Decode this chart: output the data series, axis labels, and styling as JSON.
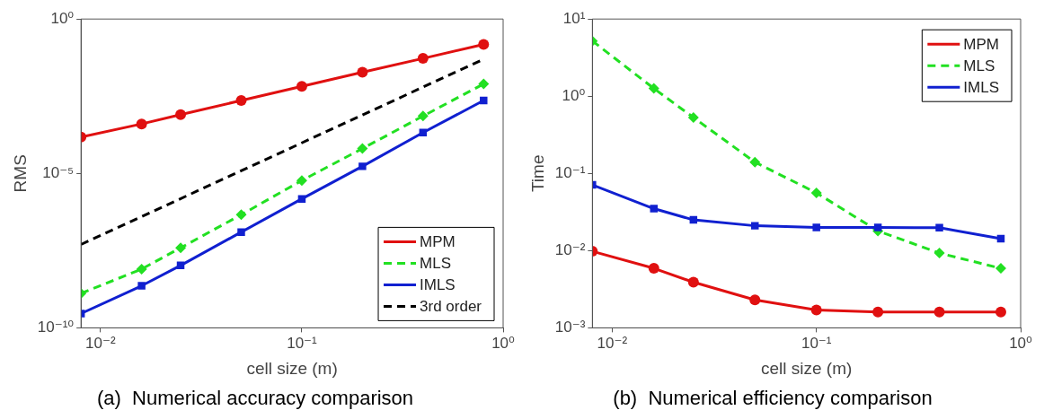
{
  "chart_data": [
    {
      "type": "line",
      "title": "(a)  Numerical accuracy comparison",
      "xlabel": "cell size (m)",
      "ylabel": "RMS",
      "log": "xy",
      "grid": false,
      "legend": "bottom right",
      "x": [
        0.008,
        0.016,
        0.025,
        0.05,
        0.1,
        0.2,
        0.4,
        0.8
      ],
      "xlim": [
        0.008,
        1
      ],
      "xticks": [
        {
          "value": 0.01,
          "label": "10⁻²"
        },
        {
          "value": 0.1,
          "label": "10⁻¹"
        },
        {
          "value": 1,
          "label": "10⁰"
        }
      ],
      "ylim": [
        1e-10,
        1
      ],
      "yticks": [
        {
          "value": 1e-10,
          "label": "10⁻¹⁰"
        },
        {
          "value": 1e-05,
          "label": "10⁻⁵"
        },
        {
          "value": 1,
          "label": "10⁰"
        }
      ],
      "series": [
        {
          "name": "MPM",
          "color": "#e01010",
          "marker": "circle",
          "line_style": "solid",
          "values": [
            0.00015,
            0.0004,
            0.0008,
            0.0023,
            0.0066,
            0.019,
            0.053,
            0.15
          ]
        },
        {
          "name": "MLS",
          "color": "#22e022",
          "marker": "diamond",
          "line_style": "dashed",
          "values": [
            1.3e-09,
            8e-09,
            3.9e-08,
            4.6e-07,
            5.9e-06,
            6.4e-05,
            0.00072,
            0.0079
          ]
        },
        {
          "name": "IMLS",
          "color": "#1020d0",
          "marker": "square",
          "line_style": "solid",
          "values": [
            2.9e-10,
            2.3e-09,
            1.05e-08,
            1.26e-07,
            1.5e-06,
            1.7e-05,
            0.00021,
            0.0023
          ]
        },
        {
          "name": "3rd order",
          "color": "#000000",
          "marker": "none",
          "line_style": "dashed",
          "x": [
            0.008,
            0.8
          ],
          "values": [
            5e-08,
            0.05
          ]
        }
      ]
    },
    {
      "type": "line",
      "title": "(b)  Numerical efficiency comparison",
      "xlabel": "cell size (m)",
      "ylabel": "Time",
      "log": "xy",
      "grid": false,
      "legend": "top right",
      "x": [
        0.008,
        0.016,
        0.025,
        0.05,
        0.1,
        0.2,
        0.4,
        0.8
      ],
      "xlim": [
        0.008,
        1
      ],
      "xticks": [
        {
          "value": 0.01,
          "label": "10⁻²"
        },
        {
          "value": 0.1,
          "label": "10⁻¹"
        },
        {
          "value": 1,
          "label": "10⁰"
        }
      ],
      "ylim": [
        0.001,
        10
      ],
      "yticks": [
        {
          "value": 0.001,
          "label": "10⁻³"
        },
        {
          "value": 0.01,
          "label": "10⁻²"
        },
        {
          "value": 0.1,
          "label": "10⁻¹"
        },
        {
          "value": 1,
          "label": "10⁰"
        },
        {
          "value": 10,
          "label": "10¹"
        }
      ],
      "series": [
        {
          "name": "MPM",
          "color": "#e01010",
          "marker": "circle",
          "line_style": "solid",
          "values": [
            0.0098,
            0.0059,
            0.0039,
            0.0023,
            0.0017,
            0.0016,
            0.0016,
            0.0016
          ]
        },
        {
          "name": "MLS",
          "color": "#22e022",
          "marker": "diamond",
          "line_style": "dashed",
          "values": [
            5.2,
            1.26,
            0.53,
            0.14,
            0.056,
            0.018,
            0.0093,
            0.0059
          ]
        },
        {
          "name": "IMLS",
          "color": "#1020d0",
          "marker": "square",
          "line_style": "solid",
          "values": [
            0.071,
            0.035,
            0.025,
            0.021,
            0.02,
            0.02,
            0.0198,
            0.0143
          ]
        }
      ]
    }
  ]
}
